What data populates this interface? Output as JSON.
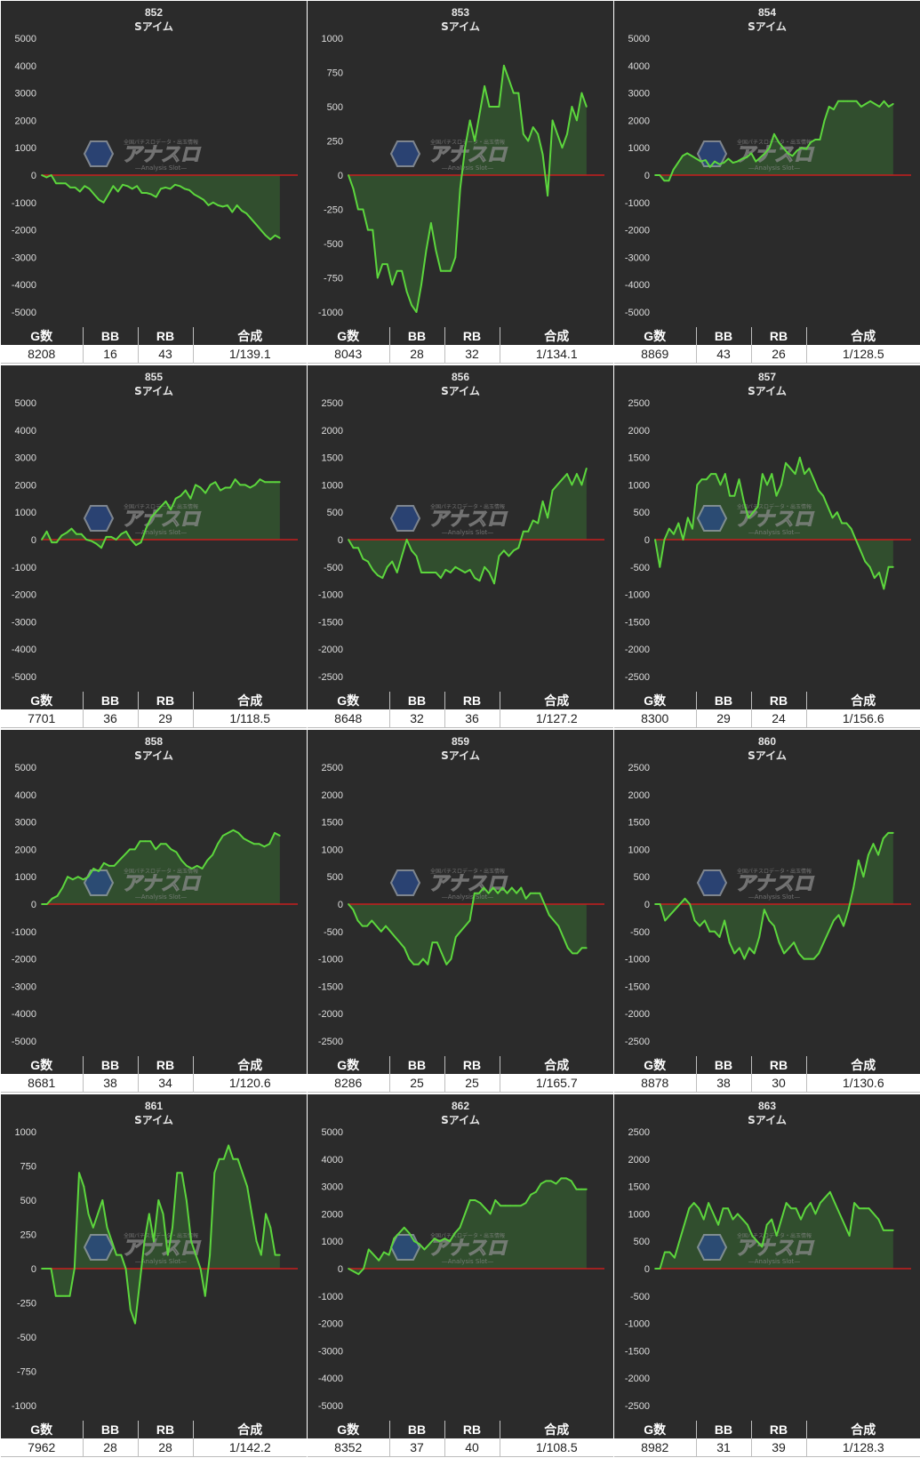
{
  "stat_headers": [
    "G数",
    "BB",
    "RB",
    "合成"
  ],
  "colors": {
    "background": "#2b2b2b",
    "line": "#5cd63d",
    "fill": "#3a7a32",
    "zero_line": "#c81e1e",
    "grid_text": "#dddddd"
  },
  "watermark": {
    "title": "アナスロ",
    "tagline": "全国パチスロデータ・出玉情報",
    "subtitle": "—Analysis Slot—"
  },
  "machines": [
    {
      "number": "852",
      "model": "Sアイム",
      "games": "8208",
      "bb": "16",
      "rb": "43",
      "combined": "1/139.1"
    },
    {
      "number": "853",
      "model": "Sアイム",
      "games": "8043",
      "bb": "28",
      "rb": "32",
      "combined": "1/134.1"
    },
    {
      "number": "854",
      "model": "Sアイム",
      "games": "8869",
      "bb": "43",
      "rb": "26",
      "combined": "1/128.5"
    },
    {
      "number": "855",
      "model": "Sアイム",
      "games": "7701",
      "bb": "36",
      "rb": "29",
      "combined": "1/118.5"
    },
    {
      "number": "856",
      "model": "Sアイム",
      "games": "8648",
      "bb": "32",
      "rb": "36",
      "combined": "1/127.2"
    },
    {
      "number": "857",
      "model": "Sアイム",
      "games": "8300",
      "bb": "29",
      "rb": "24",
      "combined": "1/156.6"
    },
    {
      "number": "858",
      "model": "Sアイム",
      "games": "8681",
      "bb": "38",
      "rb": "34",
      "combined": "1/120.6"
    },
    {
      "number": "859",
      "model": "Sアイム",
      "games": "8286",
      "bb": "25",
      "rb": "25",
      "combined": "1/165.7"
    },
    {
      "number": "860",
      "model": "Sアイム",
      "games": "8878",
      "bb": "38",
      "rb": "30",
      "combined": "1/130.6"
    },
    {
      "number": "861",
      "model": "Sアイム",
      "games": "7962",
      "bb": "28",
      "rb": "28",
      "combined": "1/142.2"
    },
    {
      "number": "862",
      "model": "Sアイム",
      "games": "8352",
      "bb": "37",
      "rb": "40",
      "combined": "1/108.5"
    },
    {
      "number": "863",
      "model": "Sアイム",
      "games": "8982",
      "bb": "31",
      "rb": "39",
      "combined": "1/128.3"
    }
  ],
  "chart_data": [
    {
      "type": "area",
      "title": "852",
      "subtitle": "Sアイム",
      "ylim": [
        -5000,
        5000
      ],
      "yticks": [
        5000,
        4000,
        3000,
        2000,
        1000,
        0,
        -1000,
        -2000,
        -3000,
        -4000,
        -5000
      ],
      "values": [
        0,
        -80,
        0,
        -300,
        -300,
        -300,
        -450,
        -450,
        -600,
        -400,
        -500,
        -700,
        -900,
        -1000,
        -700,
        -400,
        -600,
        -350,
        -400,
        -500,
        -400,
        -650,
        -650,
        -700,
        -800,
        -500,
        -450,
        -500,
        -350,
        -400,
        -500,
        -550,
        -700,
        -800,
        -900,
        -1100,
        -1000,
        -1100,
        -1150,
        -1100,
        -1350,
        -1100,
        -1300,
        -1400,
        -1600,
        -1800,
        -2000,
        -2200,
        -2350,
        -2200,
        -2300
      ]
    },
    {
      "type": "area",
      "title": "853",
      "subtitle": "Sアイム",
      "ylim": [
        -1000,
        1000
      ],
      "yticks": [
        1000,
        750,
        500,
        250,
        0,
        -250,
        -500,
        -750,
        -1000
      ],
      "values": [
        0,
        -100,
        -250,
        -250,
        -400,
        -400,
        -750,
        -650,
        -650,
        -800,
        -700,
        -700,
        -850,
        -950,
        -1000,
        -800,
        -550,
        -350,
        -550,
        -700,
        -700,
        -700,
        -600,
        -100,
        200,
        400,
        250,
        450,
        650,
        500,
        500,
        500,
        800,
        700,
        600,
        600,
        300,
        250,
        350,
        300,
        150,
        -150,
        400,
        300,
        200,
        300,
        500,
        400,
        600,
        500
      ]
    },
    {
      "type": "area",
      "title": "854",
      "subtitle": "Sアイム",
      "ylim": [
        -5000,
        5000
      ],
      "yticks": [
        5000,
        4000,
        3000,
        2000,
        1000,
        0,
        -1000,
        -2000,
        -3000,
        -4000,
        -5000
      ],
      "values": [
        0,
        0,
        -200,
        -200,
        200,
        450,
        700,
        800,
        700,
        600,
        500,
        550,
        300,
        500,
        400,
        450,
        600,
        450,
        500,
        600,
        650,
        800,
        500,
        650,
        800,
        1000,
        1500,
        1200,
        1000,
        800,
        700,
        900,
        1000,
        950,
        1200,
        1300,
        1300,
        2000,
        2500,
        2400,
        2700,
        2700,
        2700,
        2700,
        2700,
        2500,
        2600,
        2700,
        2600,
        2500,
        2700,
        2500,
        2600
      ]
    },
    {
      "type": "area",
      "title": "855",
      "subtitle": "Sアイム",
      "ylim": [
        -5000,
        5000
      ],
      "yticks": [
        5000,
        4000,
        3000,
        2000,
        1000,
        0,
        -1000,
        -2000,
        -3000,
        -4000,
        -5000
      ],
      "values": [
        0,
        300,
        -100,
        -100,
        150,
        250,
        400,
        200,
        200,
        0,
        -50,
        -150,
        -300,
        100,
        100,
        0,
        200,
        300,
        0,
        -200,
        -100,
        400,
        800,
        1000,
        1200,
        1400,
        1100,
        1500,
        1600,
        1800,
        1500,
        2000,
        1900,
        1700,
        2000,
        2100,
        1800,
        1900,
        1900,
        2200,
        2000,
        2000,
        1900,
        2000,
        2200,
        2100,
        2100,
        2100,
        2100
      ]
    },
    {
      "type": "area",
      "title": "856",
      "subtitle": "Sアイム",
      "ylim": [
        -2500,
        2500
      ],
      "yticks": [
        2500,
        2000,
        1500,
        1000,
        500,
        0,
        -500,
        -1000,
        -1500,
        -2000,
        -2500
      ],
      "values": [
        0,
        -150,
        -150,
        -350,
        -400,
        -550,
        -650,
        -700,
        -500,
        -400,
        -600,
        -300,
        0,
        -200,
        -300,
        -600,
        -600,
        -600,
        -600,
        -700,
        -550,
        -600,
        -500,
        -550,
        -600,
        -550,
        -700,
        -750,
        -500,
        -600,
        -800,
        -300,
        -200,
        -300,
        -200,
        -150,
        150,
        150,
        350,
        300,
        700,
        400,
        900,
        1000,
        1100,
        1200,
        1000,
        1200,
        1000,
        1300
      ]
    },
    {
      "type": "area",
      "title": "857",
      "subtitle": "Sアイム",
      "ylim": [
        -2500,
        2500
      ],
      "yticks": [
        2500,
        2000,
        1500,
        1000,
        500,
        0,
        -500,
        -1000,
        -1500,
        -2000,
        -2500
      ],
      "values": [
        0,
        -500,
        0,
        200,
        100,
        300,
        0,
        400,
        200,
        1000,
        1100,
        1100,
        1200,
        1200,
        1000,
        1200,
        800,
        800,
        1100,
        700,
        400,
        500,
        600,
        1200,
        1000,
        1200,
        800,
        1000,
        1400,
        1300,
        1200,
        1500,
        1200,
        1300,
        1100,
        900,
        800,
        600,
        400,
        500,
        300,
        300,
        200,
        0,
        -200,
        -400,
        -500,
        -700,
        -600,
        -900,
        -500,
        -500
      ]
    },
    {
      "type": "area",
      "title": "858",
      "subtitle": "Sアイム",
      "ylim": [
        -5000,
        5000
      ],
      "yticks": [
        5000,
        4000,
        3000,
        2000,
        1000,
        0,
        -1000,
        -2000,
        -3000,
        -4000,
        -5000
      ],
      "values": [
        0,
        0,
        200,
        300,
        600,
        1000,
        900,
        1000,
        900,
        1000,
        1300,
        1200,
        1500,
        1400,
        1400,
        1600,
        1800,
        2000,
        2000,
        2300,
        2300,
        2300,
        2000,
        2200,
        2200,
        2000,
        1900,
        1600,
        1400,
        1300,
        1400,
        1300,
        1600,
        1800,
        2200,
        2500,
        2600,
        2700,
        2600,
        2400,
        2300,
        2200,
        2200,
        2100,
        2200,
        2600,
        2500
      ]
    },
    {
      "type": "area",
      "title": "859",
      "subtitle": "Sアイム",
      "ylim": [
        -2500,
        2500
      ],
      "yticks": [
        2500,
        2000,
        1500,
        1000,
        500,
        0,
        -500,
        -1000,
        -1500,
        -2000,
        -2500
      ],
      "values": [
        0,
        -100,
        -300,
        -400,
        -400,
        -300,
        -400,
        -500,
        -400,
        -500,
        -600,
        -700,
        -800,
        -1000,
        -1100,
        -1100,
        -1000,
        -1100,
        -700,
        -700,
        -900,
        -1100,
        -1000,
        -600,
        -500,
        -400,
        -300,
        200,
        200,
        300,
        200,
        300,
        200,
        300,
        200,
        300,
        200,
        300,
        100,
        200,
        200,
        200,
        0,
        -200,
        -300,
        -400,
        -600,
        -800,
        -900,
        -900,
        -800,
        -800
      ]
    },
    {
      "type": "area",
      "title": "860",
      "subtitle": "Sアイム",
      "ylim": [
        -2500,
        2500
      ],
      "yticks": [
        2500,
        2000,
        1500,
        1000,
        500,
        0,
        -500,
        -1000,
        -1500,
        -2000,
        -2500
      ],
      "values": [
        0,
        0,
        -300,
        -200,
        -100,
        0,
        100,
        0,
        -300,
        -400,
        -300,
        -500,
        -500,
        -600,
        -300,
        -700,
        -900,
        -800,
        -1000,
        -800,
        -900,
        -600,
        -100,
        -300,
        -400,
        -700,
        -900,
        -800,
        -700,
        -900,
        -1000,
        -1000,
        -1000,
        -900,
        -700,
        -500,
        -300,
        -200,
        -400,
        -100,
        300,
        800,
        500,
        900,
        1100,
        900,
        1200,
        1300,
        1300
      ]
    },
    {
      "type": "area",
      "title": "861",
      "subtitle": "Sアイム",
      "ylim": [
        -1000,
        1000
      ],
      "yticks": [
        1000,
        750,
        500,
        250,
        0,
        -250,
        -500,
        -750,
        -1000
      ],
      "values": [
        0,
        0,
        0,
        -200,
        -200,
        -200,
        -200,
        0,
        700,
        600,
        400,
        300,
        400,
        500,
        300,
        200,
        100,
        100,
        0,
        -300,
        -400,
        -100,
        200,
        400,
        200,
        500,
        400,
        100,
        300,
        700,
        700,
        500,
        200,
        100,
        0,
        -200,
        100,
        700,
        800,
        800,
        900,
        800,
        800,
        700,
        600,
        400,
        200,
        100,
        400,
        300,
        100,
        100
      ]
    },
    {
      "type": "area",
      "title": "862",
      "subtitle": "Sアイム",
      "ylim": [
        -5000,
        5000
      ],
      "yticks": [
        5000,
        4000,
        3000,
        2000,
        1000,
        0,
        -1000,
        -2000,
        -3000,
        -4000,
        -5000
      ],
      "values": [
        0,
        -100,
        -200,
        0,
        700,
        500,
        300,
        600,
        500,
        1100,
        1300,
        1500,
        1300,
        1000,
        900,
        700,
        900,
        1100,
        1000,
        1100,
        1000,
        1300,
        1500,
        2000,
        2500,
        2500,
        2400,
        2200,
        2000,
        2500,
        2300,
        2300,
        2300,
        2300,
        2300,
        2400,
        2700,
        2800,
        3100,
        3200,
        3200,
        3100,
        3300,
        3300,
        3200,
        2900,
        2900,
        2900
      ]
    },
    {
      "type": "area",
      "title": "863",
      "subtitle": "Sアイム",
      "ylim": [
        -2500,
        2500
      ],
      "yticks": [
        2500,
        2000,
        1500,
        1000,
        500,
        0,
        -500,
        -1000,
        -1500,
        -2000,
        -2500
      ],
      "values": [
        0,
        0,
        300,
        300,
        200,
        500,
        800,
        1100,
        1200,
        1100,
        900,
        1200,
        1000,
        800,
        1100,
        1100,
        900,
        1000,
        900,
        800,
        600,
        500,
        400,
        800,
        900,
        600,
        900,
        1200,
        1100,
        1100,
        900,
        1100,
        1200,
        1000,
        1200,
        1300,
        1400,
        1200,
        1000,
        800,
        600,
        1200,
        1100,
        1100,
        1100,
        1000,
        900,
        700,
        700,
        700
      ]
    }
  ]
}
